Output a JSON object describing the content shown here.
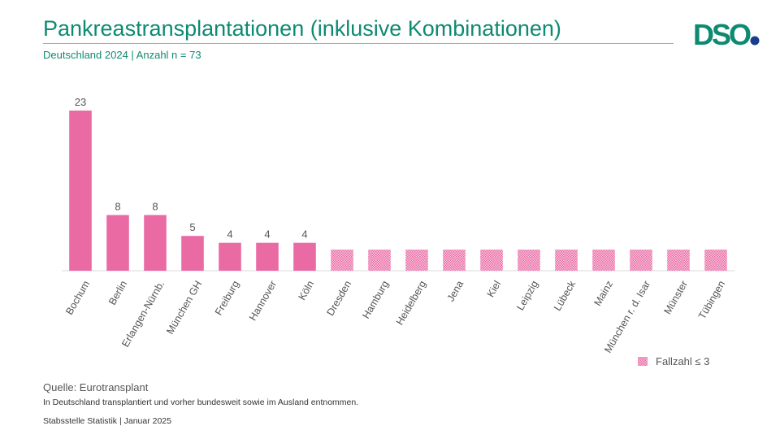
{
  "header": {
    "title": "Pankreastransplantationen (inklusive Kombinationen)",
    "subtitle": "Deutschland 2024 | Anzahl n = 73",
    "logo_text": "DSO"
  },
  "colors": {
    "brand": "#0f8a72",
    "logo_dot": "#1a3c8c",
    "bar": "#ea6aa4",
    "hatch_bg": "#f7c6dd"
  },
  "chart_data": {
    "type": "bar",
    "categories": [
      "Bochum",
      "Berlin",
      "Erlangen-Nürnb.",
      "München GH",
      "Freiburg",
      "Hannover",
      "Köln",
      "Dresden",
      "Hamburg",
      "Heidelberg",
      "Jena",
      "Kiel",
      "Leipzig",
      "Lübeck",
      "Mainz",
      "München r. d. Isar",
      "Münster",
      "Tübingen"
    ],
    "values": [
      23,
      8,
      8,
      5,
      4,
      4,
      4,
      null,
      null,
      null,
      null,
      null,
      null,
      null,
      null,
      null,
      null,
      null
    ],
    "data_labels": [
      "23",
      "8",
      "8",
      "5",
      "4",
      "4",
      "4",
      "",
      "",
      "",
      "",
      "",
      "",
      "",
      "",
      "",
      "",
      ""
    ],
    "suppressed": [
      false,
      false,
      false,
      false,
      false,
      false,
      false,
      true,
      true,
      true,
      true,
      true,
      true,
      true,
      true,
      true,
      true,
      true
    ],
    "legend": {
      "label": "Fallzahl ≤ 3",
      "position": "bottom-right"
    },
    "ylim": [
      0,
      23
    ],
    "grid": false,
    "xlabel": "",
    "ylabel": ""
  },
  "footer": {
    "source": "Quelle: Eurotransplant",
    "note": "In Deutschland transplantiert und vorher bundesweit sowie im Ausland entnommen.",
    "org": "Stabsstelle Statistik | Januar 2025"
  }
}
